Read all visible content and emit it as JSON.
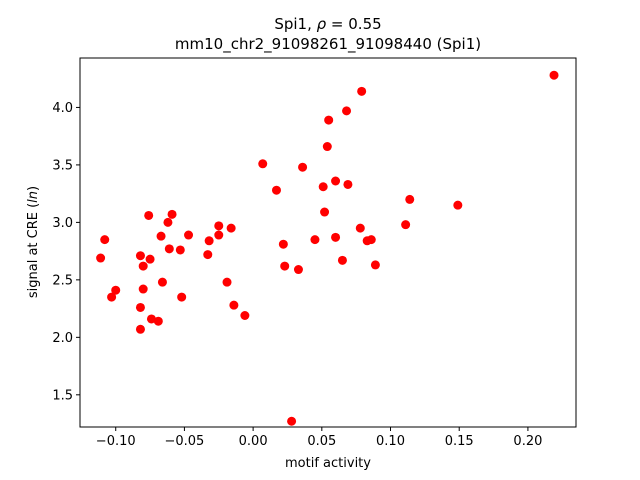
{
  "chart_data": {
    "type": "scatter",
    "title_prefix": "Spi1, ",
    "title_rho_symbol": "ρ",
    "title_rho_value": " = 0.55",
    "subtitle": "mm10_chr2_91098261_91098440 (Spi1)",
    "xlabel": "motif activity",
    "ylabel_prefix": "signal at CRE (",
    "ylabel_italic": "ln",
    "ylabel_suffix": ")",
    "xlim": [
      -0.126,
      0.235
    ],
    "ylim": [
      1.22,
      4.43
    ],
    "xticks": [
      -0.1,
      -0.05,
      0.0,
      0.05,
      0.1,
      0.15,
      0.2
    ],
    "xtick_labels": [
      "−0.10",
      "−0.05",
      "0.00",
      "0.05",
      "0.10",
      "0.15",
      "0.20"
    ],
    "yticks": [
      1.5,
      2.0,
      2.5,
      3.0,
      3.5,
      4.0
    ],
    "ytick_labels": [
      "1.5",
      "2.0",
      "2.5",
      "3.0",
      "3.5",
      "4.0"
    ],
    "grid": false,
    "marker_color": "#ff0000",
    "points": [
      [
        -0.111,
        2.69
      ],
      [
        -0.108,
        2.85
      ],
      [
        -0.103,
        2.35
      ],
      [
        -0.1,
        2.41
      ],
      [
        -0.082,
        2.71
      ],
      [
        -0.082,
        2.26
      ],
      [
        -0.082,
        2.07
      ],
      [
        -0.08,
        2.62
      ],
      [
        -0.08,
        2.42
      ],
      [
        -0.076,
        3.06
      ],
      [
        -0.075,
        2.68
      ],
      [
        -0.074,
        2.16
      ],
      [
        -0.069,
        2.14
      ],
      [
        -0.067,
        2.88
      ],
      [
        -0.066,
        2.48
      ],
      [
        -0.062,
        3.0
      ],
      [
        -0.061,
        2.77
      ],
      [
        -0.059,
        3.07
      ],
      [
        -0.053,
        2.76
      ],
      [
        -0.052,
        2.35
      ],
      [
        -0.047,
        2.89
      ],
      [
        -0.033,
        2.72
      ],
      [
        -0.032,
        2.84
      ],
      [
        -0.025,
        2.89
      ],
      [
        -0.025,
        2.97
      ],
      [
        -0.019,
        2.48
      ],
      [
        -0.016,
        2.95
      ],
      [
        -0.014,
        2.28
      ],
      [
        -0.006,
        2.19
      ],
      [
        0.007,
        3.51
      ],
      [
        0.017,
        3.28
      ],
      [
        0.022,
        2.81
      ],
      [
        0.023,
        2.62
      ],
      [
        0.028,
        1.27
      ],
      [
        0.033,
        2.59
      ],
      [
        0.036,
        3.48
      ],
      [
        0.045,
        2.85
      ],
      [
        0.051,
        3.31
      ],
      [
        0.052,
        3.09
      ],
      [
        0.054,
        3.66
      ],
      [
        0.055,
        3.89
      ],
      [
        0.06,
        2.87
      ],
      [
        0.06,
        3.36
      ],
      [
        0.065,
        2.67
      ],
      [
        0.068,
        3.97
      ],
      [
        0.069,
        3.33
      ],
      [
        0.078,
        2.95
      ],
      [
        0.079,
        4.14
      ],
      [
        0.083,
        2.84
      ],
      [
        0.086,
        2.85
      ],
      [
        0.089,
        2.63
      ],
      [
        0.111,
        2.98
      ],
      [
        0.114,
        3.2
      ],
      [
        0.149,
        3.15
      ],
      [
        0.219,
        4.28
      ]
    ]
  }
}
